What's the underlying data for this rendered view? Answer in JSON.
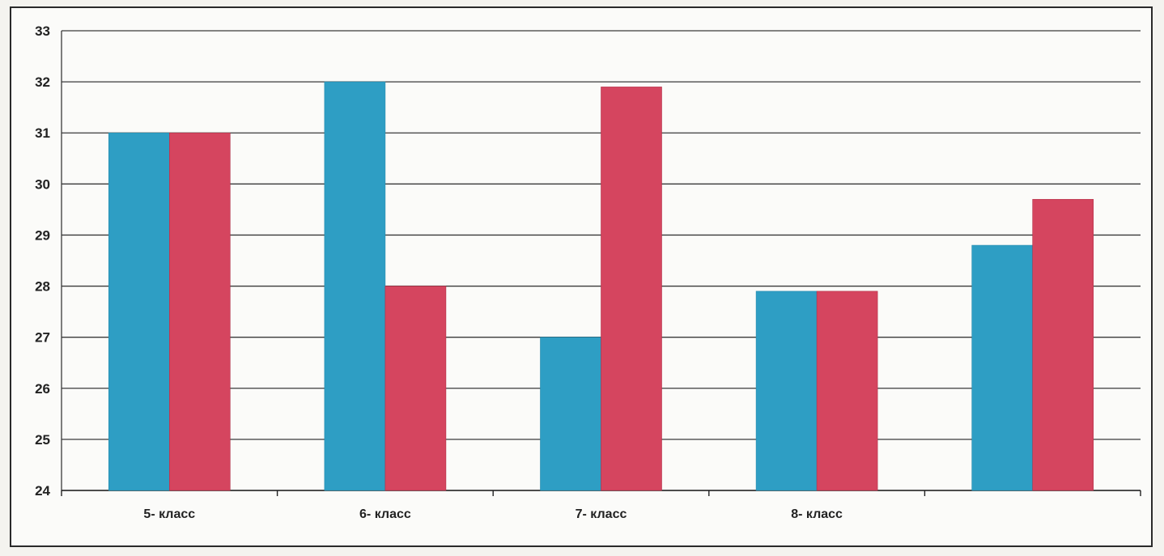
{
  "chart_data": {
    "type": "bar",
    "categories": [
      "5- класс",
      "6- класс",
      "7- класс",
      "8- класс",
      ""
    ],
    "series": [
      {
        "values": [
          31,
          32,
          27,
          27.9,
          28.8
        ],
        "color": "#2e9ec4"
      },
      {
        "values": [
          31,
          28,
          31.9,
          27.9,
          29.7
        ],
        "color": "#d5455f"
      }
    ],
    "ylim": [
      24,
      33
    ],
    "yticks": [
      "24",
      "25",
      "26",
      "27",
      "28",
      "29",
      "30",
      "31",
      "32",
      "33"
    ],
    "grid": true,
    "legend": "none"
  }
}
